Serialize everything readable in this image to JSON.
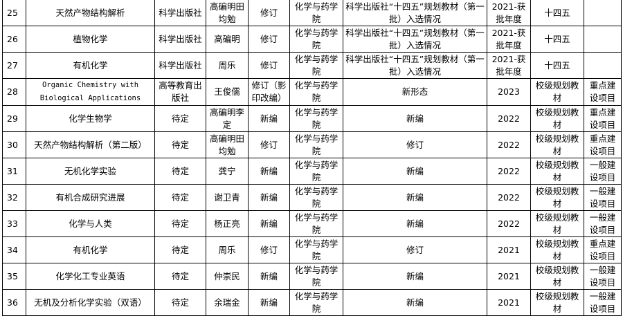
{
  "table": {
    "rows": [
      [
        "25",
        "天然产物结构解析",
        "科学出版社",
        "高碥明田均勉",
        "修订",
        "化学与药学院",
        "科学出版社“十四五”规划教材（第一批）入选情况",
        "2021-获批年度",
        "十四五"
      ],
      [
        "26",
        "植物化学",
        "科学出版社",
        "高碥明",
        "修订",
        "化学与药学院",
        "科学出版社“十四五”规划教材（第一批）入选情况",
        "2021-获批年度",
        "十四五"
      ],
      [
        "27",
        "有机化学",
        "科学出版社",
        "周乐",
        "修订",
        "化学与药学院",
        "科学出版社“十四五”规划教材（第一批）入选情况",
        "2021-获批年度",
        "十四五"
      ],
      [
        "28",
        "Organic Chemistry with Biological Applications",
        "高等教育出版社",
        "王俊儒",
        "修订（影印改编）",
        "化学与药学院",
        "新形态",
        "2023",
        "校级规划教材",
        "重点建设项目"
      ],
      [
        "29",
        "化学生物学",
        "待定",
        "高碥明李定",
        "新编",
        "化学与药学院",
        "新编",
        "2022",
        "校级规划教材",
        "重点建设项目"
      ],
      [
        "30",
        "天然产物结构解析（第二版）",
        "待定",
        "高碥明田均勉",
        "修订",
        "化学与药学院",
        "修订",
        "2022",
        "校级规划教材",
        "重点建设项目"
      ],
      [
        "31",
        "无机化学实验",
        "待定",
        "龚宁",
        "新编",
        "化学与药学院",
        "新编",
        "2022",
        "校级规划教材",
        "一般建设项目"
      ],
      [
        "32",
        "有机合成研究进展",
        "待定",
        "谢卫青",
        "新编",
        "化学与药学院",
        "新编",
        "2022",
        "校级规划教材",
        "一般建设项目"
      ],
      [
        "33",
        "化学与人类",
        "待定",
        "杨正亮",
        "新编",
        "化学与药学院",
        "新编",
        "2022",
        "校级规划教材",
        "一般建设项目"
      ],
      [
        "34",
        "有机化学",
        "待定",
        "周乐",
        "修订",
        "化学与药学院",
        "修订",
        "2021",
        "校级规划教材",
        "重点建设项目"
      ],
      [
        "35",
        "化学化工专业英语",
        "待定",
        "仲崇民",
        "新编",
        "化学与药学院",
        "新编",
        "2021",
        "校级规划教材",
        "一般建设项目"
      ],
      [
        "36",
        "无机及分析化学实验（双语）",
        "待定",
        "余瑞金",
        "新编",
        "化学与药学院",
        "新编",
        "2021",
        "校级规划教材",
        "一般建设项目"
      ]
    ]
  }
}
